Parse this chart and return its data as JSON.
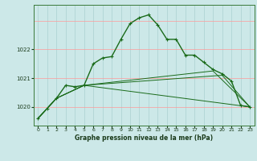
{
  "bg_color": "#cce8e8",
  "grid_color_v": "#aad0d0",
  "grid_color_h": "#ff9999",
  "line_color": "#1a6b1a",
  "xlabel": "Graphe pression niveau de la mer (hPa)",
  "ylim": [
    1019.35,
    1023.55
  ],
  "xlim": [
    -0.5,
    23.5
  ],
  "yticks": [
    1020,
    1021,
    1022
  ],
  "xticks": [
    0,
    1,
    2,
    3,
    4,
    5,
    6,
    7,
    8,
    9,
    10,
    11,
    12,
    13,
    14,
    15,
    16,
    17,
    18,
    19,
    20,
    21,
    22,
    23
  ],
  "series": [
    {
      "x": [
        0,
        1,
        2,
        3,
        4,
        5,
        6,
        7,
        8,
        9,
        10,
        11,
        12,
        13,
        14,
        15,
        16,
        17,
        18,
        19,
        20,
        21,
        22,
        23
      ],
      "y": [
        1019.6,
        1019.95,
        1020.3,
        1020.75,
        1020.7,
        1020.75,
        1021.5,
        1021.7,
        1021.75,
        1022.35,
        1022.9,
        1023.1,
        1023.2,
        1022.85,
        1022.35,
        1022.35,
        1021.8,
        1021.8,
        1021.55,
        1021.3,
        1021.15,
        1020.9,
        1020.05,
        1020.0
      ],
      "marker": true,
      "lw": 1.0
    },
    {
      "x": [
        0,
        2,
        5,
        23
      ],
      "y": [
        1019.6,
        1020.3,
        1020.75,
        1020.0
      ],
      "marker": false,
      "lw": 0.7
    },
    {
      "x": [
        0,
        2,
        5,
        20,
        23
      ],
      "y": [
        1019.6,
        1020.3,
        1020.75,
        1021.1,
        1020.0
      ],
      "marker": false,
      "lw": 0.7
    },
    {
      "x": [
        0,
        2,
        5,
        19,
        23
      ],
      "y": [
        1019.6,
        1020.3,
        1020.75,
        1021.25,
        1020.0
      ],
      "marker": false,
      "lw": 0.7
    }
  ]
}
